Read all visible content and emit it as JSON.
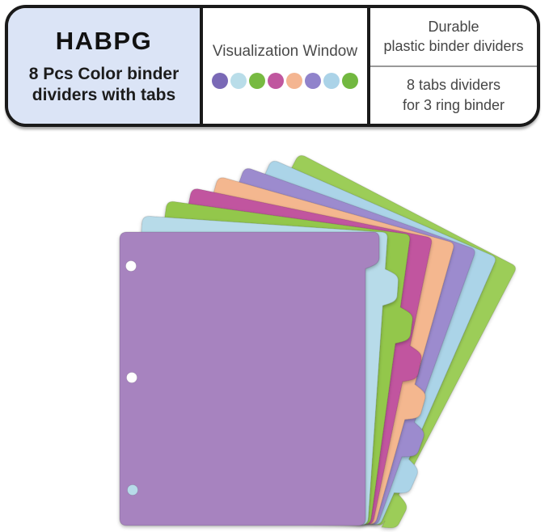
{
  "banner": {
    "brand": "HABPG",
    "subtitle_line1": "8 Pcs Color binder",
    "subtitle_line2": "dividers with tabs",
    "visualization": {
      "title": "Visualization Window",
      "dot_colors": [
        "#7a69b6",
        "#b9dde9",
        "#77ba41",
        "#c0579f",
        "#f4b591",
        "#9083cb",
        "#abd3e8",
        "#72b840"
      ]
    },
    "features": {
      "feature1_line1": "Durable",
      "feature1_line2": "plastic binder dividers",
      "feature2_line1": "8 tabs dividers",
      "feature2_line2": "for 3 ring binder"
    }
  },
  "product": {
    "tab_count": 8,
    "sheet_colors_front_to_back": [
      "#a783bf",
      "#b7dbe9",
      "#93c74b",
      "#c1549f",
      "#f4b78f",
      "#9c8bce",
      "#abd4e8",
      "#9ccd59"
    ],
    "binder_holes": {
      "count": 3,
      "hole_colors": [
        "#ffffff",
        "#ffffff",
        "#b7dbe9"
      ]
    }
  },
  "colors": {
    "banner_border": "#1a1a1a",
    "brand_cell_bg": "#dbe4f6",
    "text_dark": "#111111",
    "text_gray": "#4a4a4a",
    "divider_line": "#999999",
    "background": "#ffffff"
  }
}
